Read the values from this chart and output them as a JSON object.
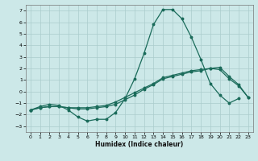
{
  "xlabel": "Humidex (Indice chaleur)",
  "bg_color": "#cce8e8",
  "grid_color": "#aacccc",
  "line_color": "#1a6b5a",
  "xlim": [
    -0.5,
    23.5
  ],
  "ylim": [
    -3.5,
    7.5
  ],
  "xticks": [
    0,
    1,
    2,
    3,
    4,
    5,
    6,
    7,
    8,
    9,
    10,
    11,
    12,
    13,
    14,
    15,
    16,
    17,
    18,
    19,
    20,
    21,
    22,
    23
  ],
  "yticks": [
    -3,
    -2,
    -1,
    0,
    1,
    2,
    3,
    4,
    5,
    6,
    7
  ],
  "line1_x": [
    0,
    1,
    2,
    3,
    4,
    5,
    6,
    7,
    8,
    9,
    10,
    11,
    12,
    13,
    14,
    15,
    16,
    17,
    18,
    19,
    20,
    21,
    22
  ],
  "line1_y": [
    -1.6,
    -1.3,
    -1.1,
    -1.2,
    -1.6,
    -2.2,
    -2.55,
    -2.4,
    -2.4,
    -1.8,
    -0.6,
    1.1,
    3.3,
    5.8,
    7.1,
    7.1,
    6.3,
    4.7,
    2.8,
    0.7,
    -0.3,
    -1.0,
    -0.6
  ],
  "line2_x": [
    0,
    1,
    2,
    3,
    4,
    5,
    6,
    7,
    8,
    9,
    10,
    11,
    12,
    13,
    14,
    15,
    16,
    17,
    18,
    19,
    20,
    21,
    22,
    23
  ],
  "line2_y": [
    -1.6,
    -1.4,
    -1.3,
    -1.3,
    -1.4,
    -1.5,
    -1.5,
    -1.4,
    -1.3,
    -1.1,
    -0.7,
    -0.3,
    0.2,
    0.6,
    1.1,
    1.3,
    1.5,
    1.7,
    1.8,
    2.0,
    1.9,
    1.1,
    0.5,
    -0.5
  ],
  "line3_x": [
    0,
    1,
    2,
    3,
    4,
    5,
    6,
    7,
    8,
    9,
    10,
    11,
    12,
    13,
    14,
    15,
    16,
    17,
    18,
    19,
    20,
    21,
    22,
    23
  ],
  "line3_y": [
    -1.6,
    -1.4,
    -1.3,
    -1.3,
    -1.4,
    -1.4,
    -1.4,
    -1.3,
    -1.2,
    -0.9,
    -0.5,
    -0.1,
    0.3,
    0.7,
    1.2,
    1.4,
    1.6,
    1.8,
    1.9,
    2.0,
    2.1,
    1.3,
    0.6,
    -0.5
  ]
}
